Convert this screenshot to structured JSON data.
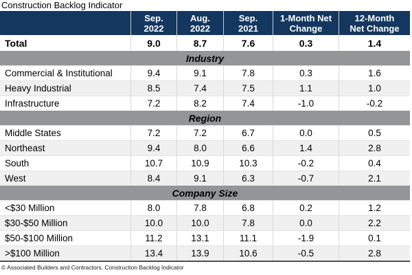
{
  "title": "Construction Backlog Indicator",
  "footer": "© Associated Builders and Contractors, Construction Backlog Indicator",
  "colors": {
    "header_bg": "#14375f",
    "header_text": "#ffffff",
    "section_band_bg": "#939598",
    "stripe_row_bg": "#f0f0f1",
    "table_bottom_border": "#4d4e50"
  },
  "chart_data": {
    "type": "table",
    "title": "Construction Backlog Indicator",
    "unit": "months of backlog",
    "columns": [
      "Sep.\n2022",
      "Aug.\n2022",
      "Sep.\n2021",
      "1-Month Net\nChange",
      "12-Month\nNet Change"
    ],
    "total": {
      "label": "Total",
      "values": [
        "9.0",
        "8.7",
        "7.6",
        "0.3",
        "1.4"
      ]
    },
    "sections": [
      {
        "name": "Industry",
        "rows": [
          {
            "label": "Commercial & Institutional",
            "values": [
              "9.4",
              "9.1",
              "7.8",
              "0.3",
              "1.6"
            ]
          },
          {
            "label": "Heavy Industrial",
            "values": [
              "8.5",
              "7.4",
              "7.5",
              "1.1",
              "1.0"
            ]
          },
          {
            "label": "Infrastructure",
            "values": [
              "7.2",
              "8.2",
              "7.4",
              "-1.0",
              "-0.2"
            ]
          }
        ]
      },
      {
        "name": "Region",
        "rows": [
          {
            "label": "Middle States",
            "values": [
              "7.2",
              "7.2",
              "6.7",
              "0.0",
              "0.5"
            ]
          },
          {
            "label": "Northeast",
            "values": [
              "9.4",
              "8.0",
              "6.6",
              "1.4",
              "2.8"
            ]
          },
          {
            "label": "South",
            "values": [
              "10.7",
              "10.9",
              "10.3",
              "-0.2",
              "0.4"
            ]
          },
          {
            "label": "West",
            "values": [
              "8.4",
              "9.1",
              "6.3",
              "-0.7",
              "2.1"
            ]
          }
        ]
      },
      {
        "name": "Company Size",
        "rows": [
          {
            "label": "<$30 Million",
            "values": [
              "8.0",
              "7.8",
              "6.8",
              "0.2",
              "1.2"
            ]
          },
          {
            "label": "$30-$50 Million",
            "values": [
              "10.0",
              "10.0",
              "7.8",
              "0.0",
              "2.2"
            ]
          },
          {
            "label": "$50-$100 Million",
            "values": [
              "11.2",
              "13.1",
              "11.1",
              "-1.9",
              "0.1"
            ]
          },
          {
            "label": ">$100 Million",
            "values": [
              "13.4",
              "13.9",
              "10.6",
              "-0.5",
              "2.8"
            ]
          }
        ]
      }
    ],
    "footnote": "© Associated Builders and Contractors, Construction Backlog Indicator"
  }
}
